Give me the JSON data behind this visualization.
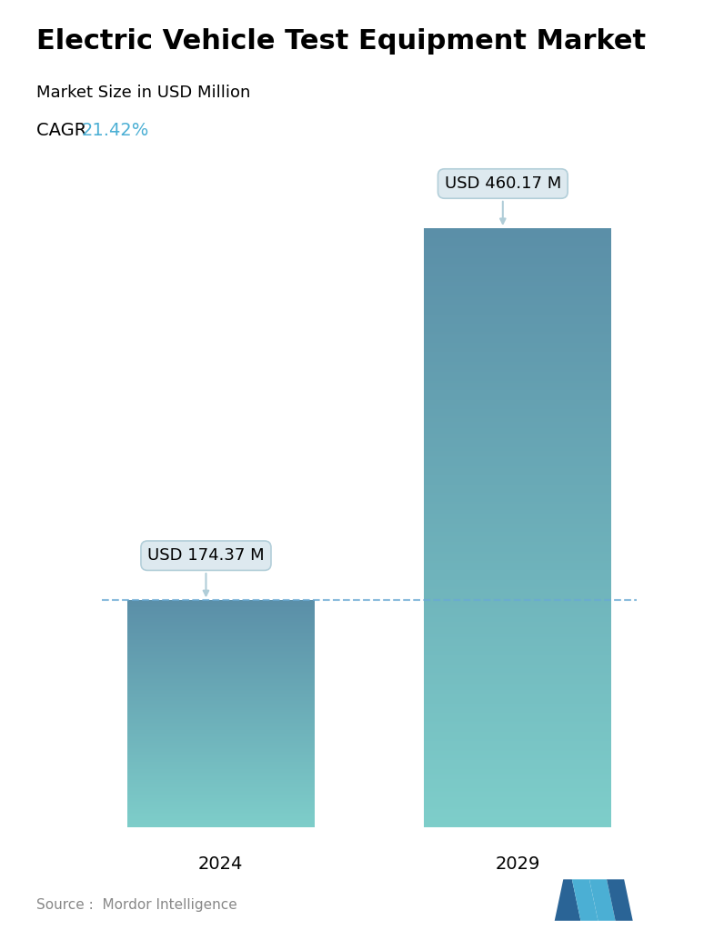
{
  "title": "Electric Vehicle Test Equipment Market",
  "subtitle": "Market Size in USD Million",
  "cagr_label": "CAGR ",
  "cagr_value": "21.42%",
  "cagr_color": "#4bafd4",
  "categories": [
    "2024",
    "2029"
  ],
  "values": [
    174.37,
    460.17
  ],
  "bar_labels": [
    "USD 174.37 M",
    "USD 460.17 M"
  ],
  "bar_color_top": "#5b8fa8",
  "bar_color_bottom": "#7ececa",
  "bar_width": 0.35,
  "dashed_line_color": "#6aaad4",
  "dashed_line_y": 174.37,
  "source_text": "Source :  Mordor Intelligence",
  "source_color": "#888888",
  "background_color": "#ffffff",
  "title_fontsize": 22,
  "subtitle_fontsize": 13,
  "cagr_fontsize": 14,
  "tick_fontsize": 14,
  "label_fontsize": 13,
  "ylim": [
    0,
    520
  ],
  "tooltip_bg": "#dce8ef",
  "tooltip_border": "#c0d8e4"
}
